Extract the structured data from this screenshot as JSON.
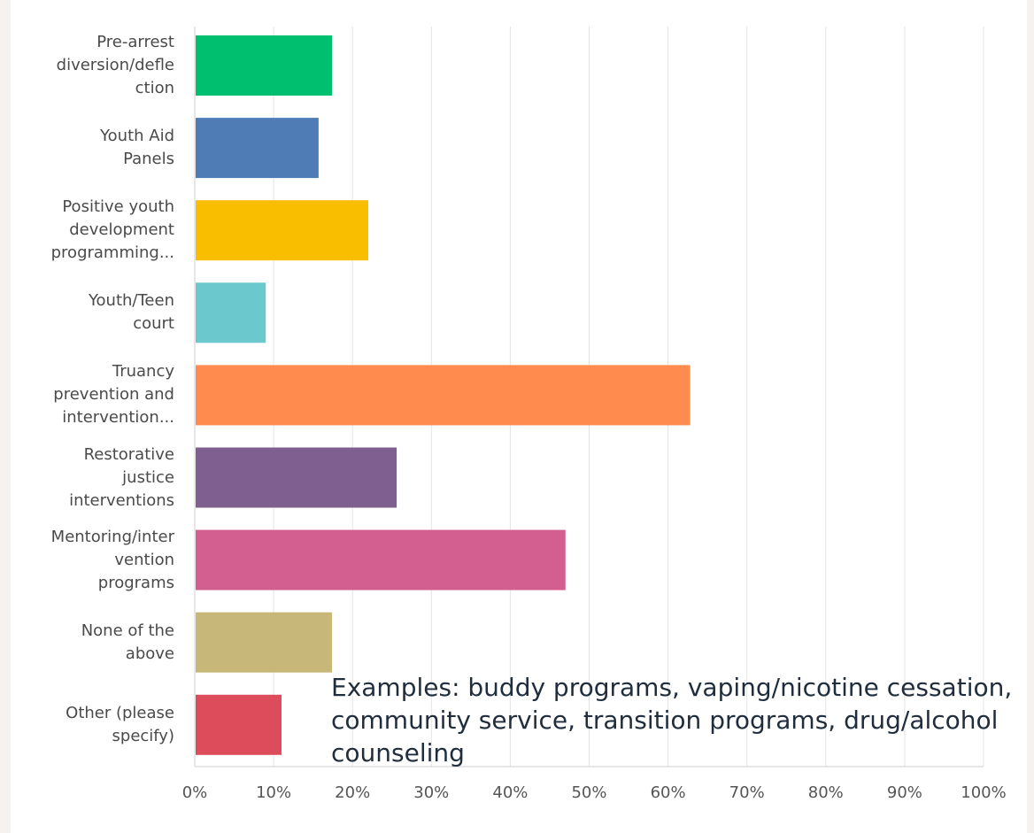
{
  "chart_data": {
    "type": "bar",
    "orientation": "horizontal",
    "categories": [
      "Pre-arrest\ndiversion/defle\nction",
      "Youth Aid\nPanels",
      "Positive youth\ndevelopment\nprogramming...",
      "Youth/Teen\ncourt",
      "Truancy\nprevention and\nintervention...",
      "Restorative\njustice\ninterventions",
      "Mentoring/inter\nvention\nprograms",
      "None of the\nabove",
      "Other (please\nspecify)"
    ],
    "values": [
      17.4,
      15.7,
      22.0,
      9.0,
      62.8,
      25.6,
      47.0,
      17.4,
      11.0
    ],
    "colors": [
      "#00bf6f",
      "#507cb6",
      "#f9be00",
      "#6bc8cd",
      "#ff8b4f",
      "#7f5f8f",
      "#d25f90",
      "#c7b879",
      "#dc4c5b"
    ],
    "xlim": [
      0,
      100
    ],
    "xticks": [
      "0%",
      "10%",
      "20%",
      "30%",
      "40%",
      "50%",
      "60%",
      "70%",
      "80%",
      "90%",
      "100%"
    ],
    "grid": true,
    "annotation": "Examples: buddy programs, vaping/nicotine cessation, community service, transition programs, drug/alcohol counseling"
  }
}
